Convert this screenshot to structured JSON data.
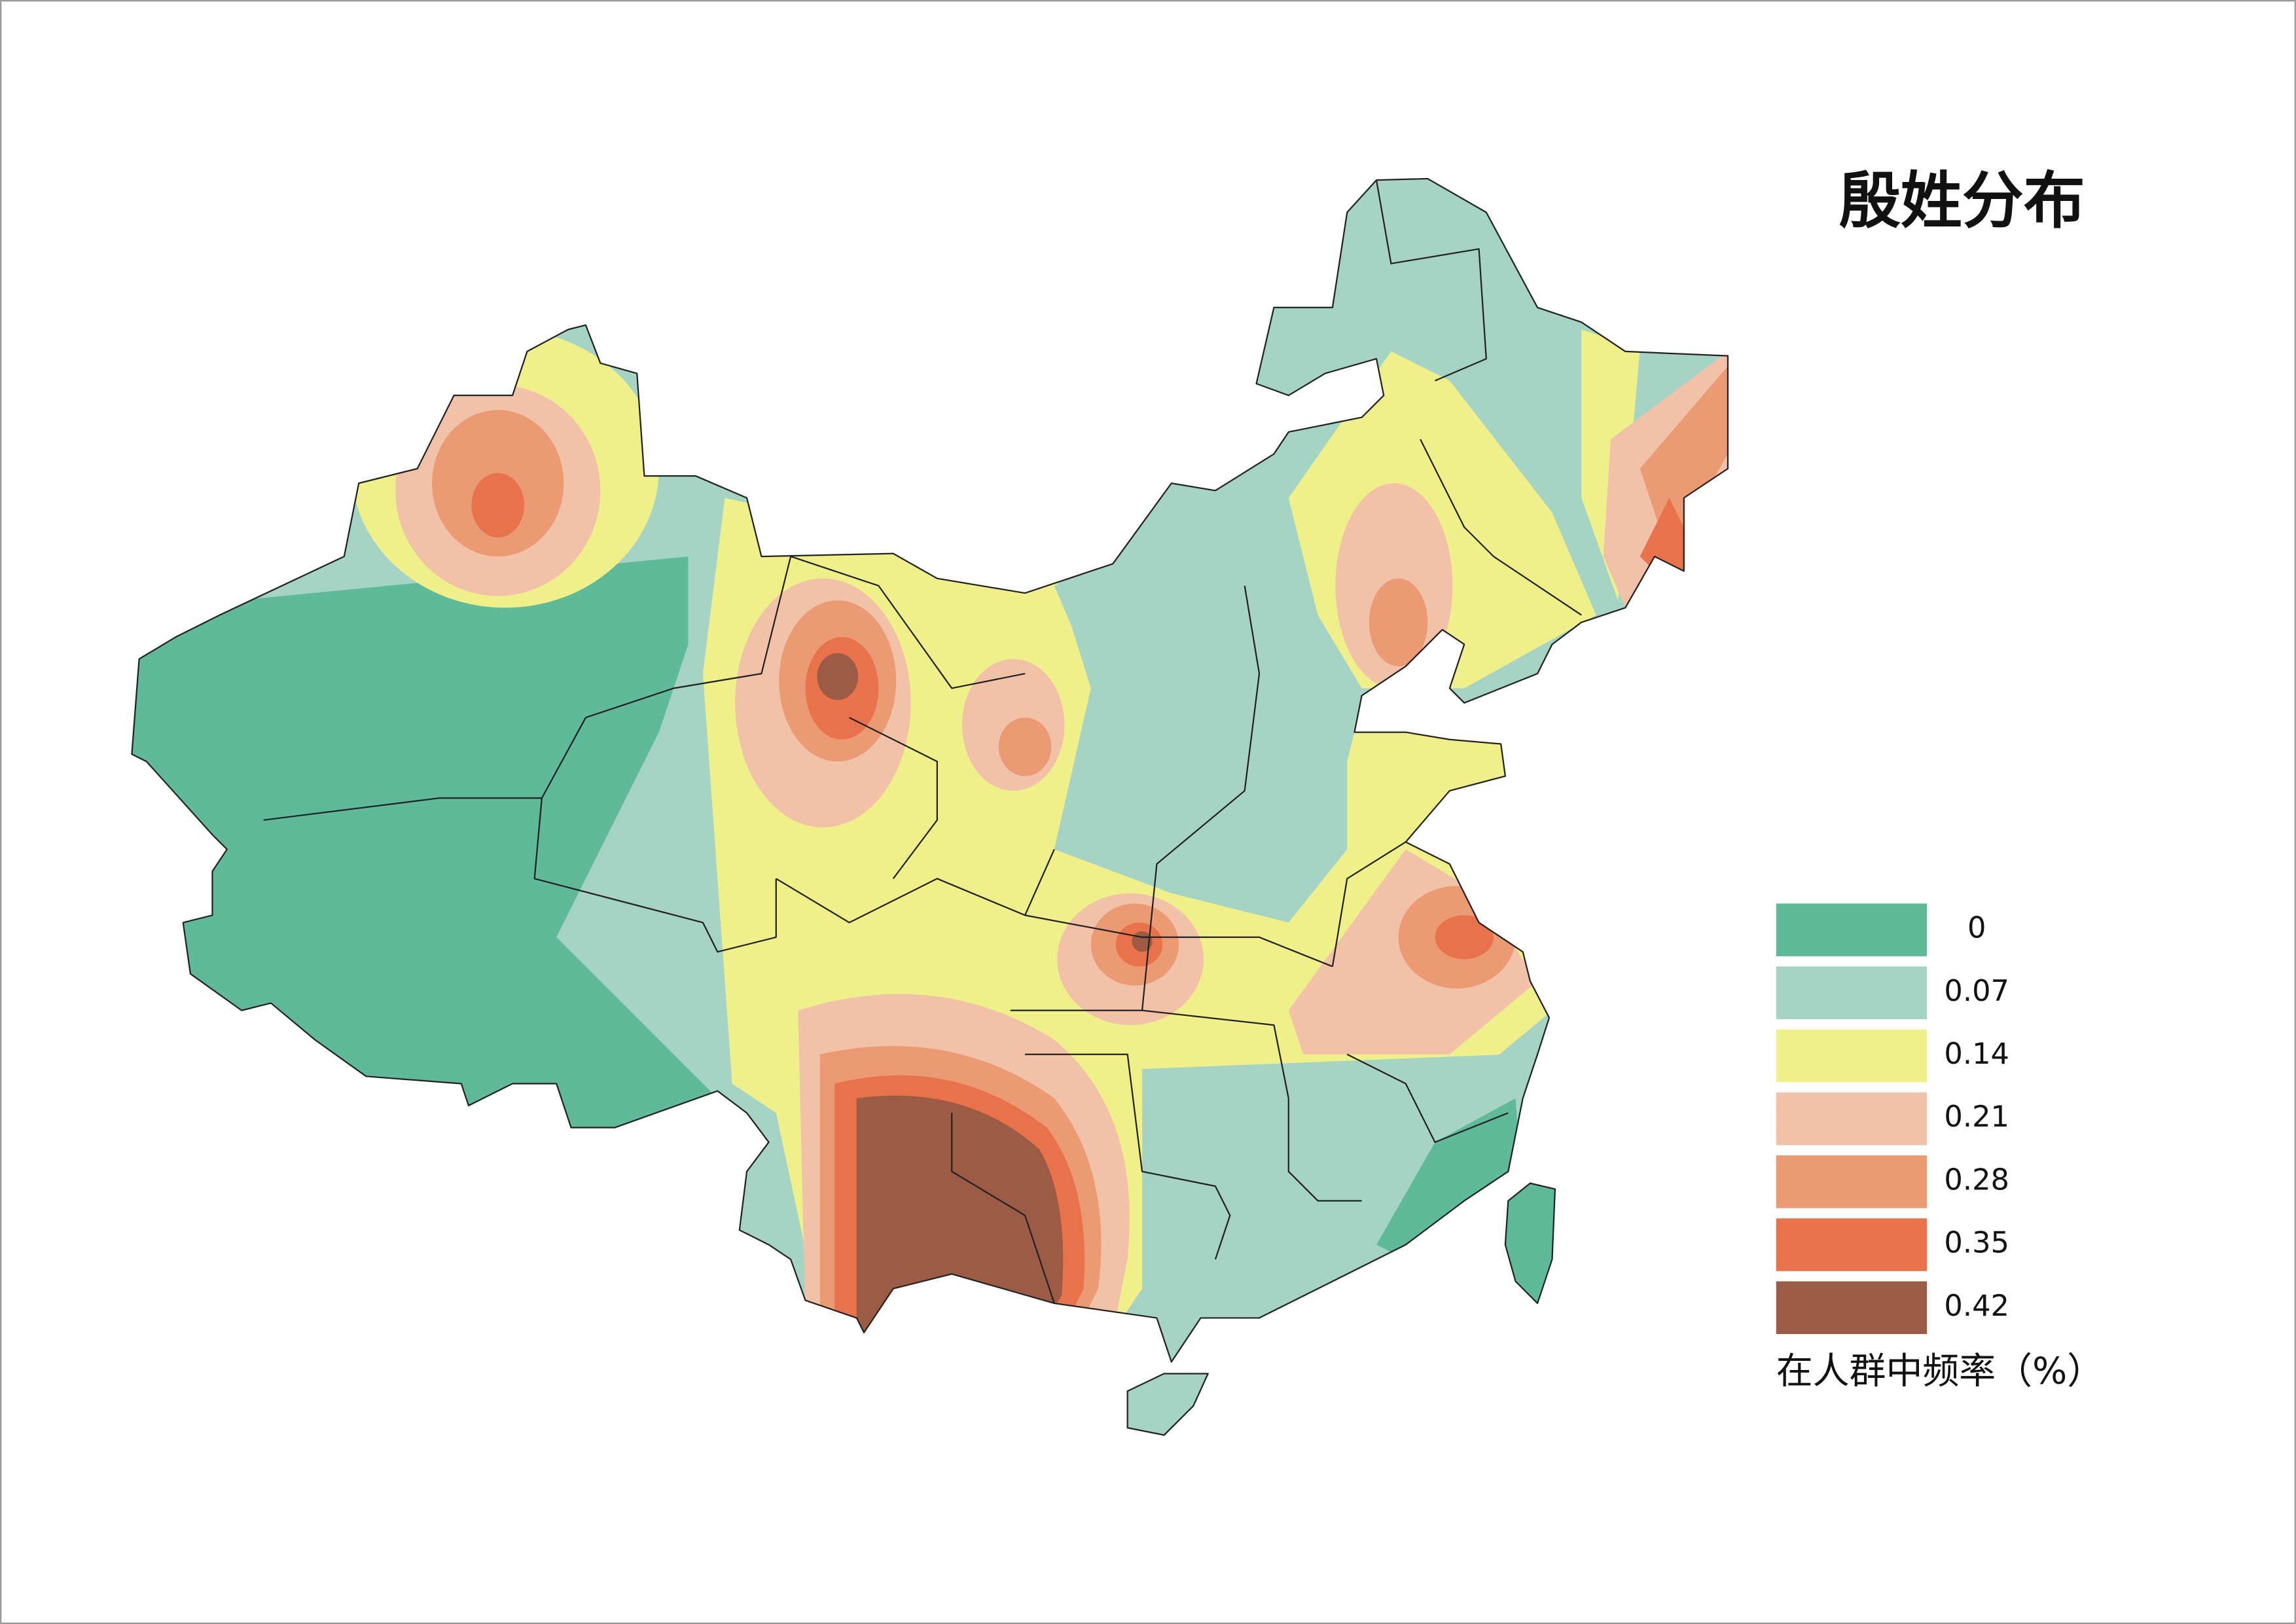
{
  "title": "殷姓分布",
  "legend": {
    "title": "在人群中频率（%）",
    "items": [
      {
        "label": "0",
        "color": "#5fba9a"
      },
      {
        "label": "0.07",
        "color": "#a5d4c4"
      },
      {
        "label": "0.14",
        "color": "#f0f08a"
      },
      {
        "label": "0.21",
        "color": "#f2c2a8"
      },
      {
        "label": "0.28",
        "color": "#eb9a74"
      },
      {
        "label": "0.35",
        "color": "#e8734a"
      },
      {
        "label": "0.42",
        "color": "#9b5b44"
      }
    ]
  }
}
